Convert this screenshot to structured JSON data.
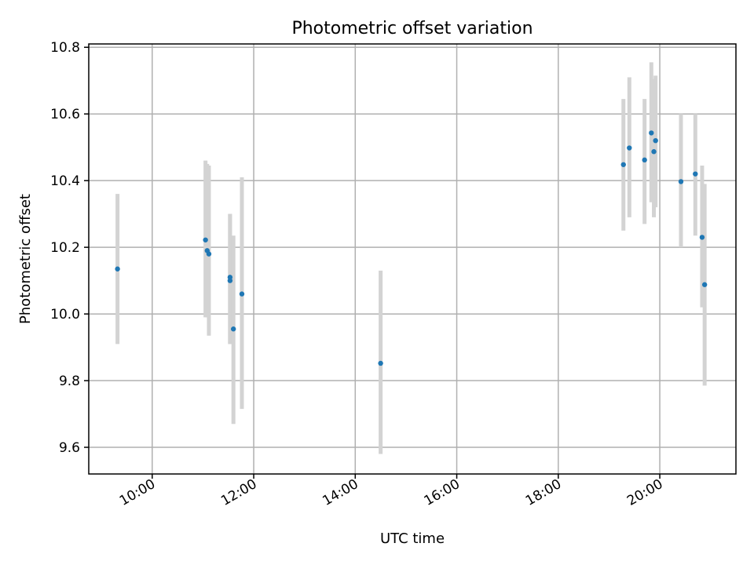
{
  "chart_data": {
    "type": "scatter",
    "title": "Photometric offset variation",
    "xlabel": "UTC time",
    "ylabel": "Photometric offset",
    "xlim": [
      "08:45",
      "21:30"
    ],
    "ylim": [
      9.52,
      10.81
    ],
    "x_ticks": [
      "10:00",
      "12:00",
      "14:00",
      "16:00",
      "18:00",
      "20:00"
    ],
    "y_ticks": [
      9.6,
      9.8,
      10.0,
      10.2,
      10.4,
      10.6,
      10.8
    ],
    "grid": true,
    "colors": {
      "point": "#1f77b4",
      "errorbar": "#d3d3d3"
    },
    "points": [
      {
        "time": "09:19",
        "value": 10.135,
        "low": 9.91,
        "high": 10.36
      },
      {
        "time": "11:03",
        "value": 10.222,
        "low": 9.99,
        "high": 10.46
      },
      {
        "time": "11:05",
        "value": 10.19,
        "low": 9.99,
        "high": 10.45
      },
      {
        "time": "11:07",
        "value": 10.18,
        "low": 9.935,
        "high": 10.445
      },
      {
        "time": "11:32",
        "value": 10.11,
        "low": 9.91,
        "high": 10.3
      },
      {
        "time": "11:32",
        "value": 10.1,
        "low": 9.91,
        "high": 10.3
      },
      {
        "time": "11:36",
        "value": 9.955,
        "low": 9.67,
        "high": 10.235
      },
      {
        "time": "11:46",
        "value": 10.06,
        "low": 9.715,
        "high": 10.41
      },
      {
        "time": "14:30",
        "value": 9.852,
        "low": 9.58,
        "high": 10.13
      },
      {
        "time": "19:17",
        "value": 10.448,
        "low": 10.25,
        "high": 10.645
      },
      {
        "time": "19:24",
        "value": 10.498,
        "low": 10.29,
        "high": 10.71
      },
      {
        "time": "19:42",
        "value": 10.462,
        "low": 10.27,
        "high": 10.645
      },
      {
        "time": "19:50",
        "value": 10.543,
        "low": 10.335,
        "high": 10.755
      },
      {
        "time": "19:53",
        "value": 10.487,
        "low": 10.29,
        "high": 10.705
      },
      {
        "time": "19:55",
        "value": 10.52,
        "low": 10.32,
        "high": 10.715
      },
      {
        "time": "20:25",
        "value": 10.397,
        "low": 10.2,
        "high": 10.6
      },
      {
        "time": "20:42",
        "value": 10.42,
        "low": 10.235,
        "high": 10.6
      },
      {
        "time": "20:50",
        "value": 10.23,
        "low": 10.02,
        "high": 10.445
      },
      {
        "time": "20:53",
        "value": 10.088,
        "low": 9.785,
        "high": 10.39
      }
    ]
  }
}
